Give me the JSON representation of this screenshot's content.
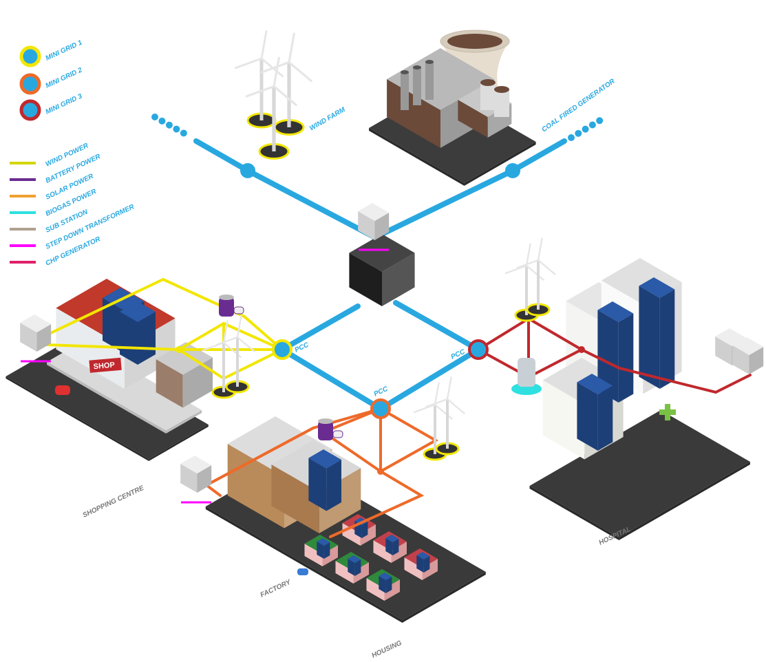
{
  "legend": {
    "mini_grids": [
      "MINI GRID 1",
      "MINI GRID 2",
      "MINI GRID 3"
    ],
    "power_types": [
      "WIND POWER",
      "BATTERY POWER",
      "SOLAR POWER",
      "BIOGAS POWER",
      "SUB STATION",
      "STEP DOWN TRANSFORMER",
      "CHP GENERATOR"
    ]
  },
  "labels": {
    "wind_farm": "WIND FARM",
    "coal_fired_generator": "COAL FIRED GENERATOR",
    "pcc": [
      "PCC",
      "PCC",
      "PCC"
    ],
    "shop_sign": "SHOP",
    "shopping_centre": "SHOPPING CENTRE",
    "factory": "FACTORY",
    "housing": "HOUSING",
    "hospital": "HOSPITAL"
  }
}
